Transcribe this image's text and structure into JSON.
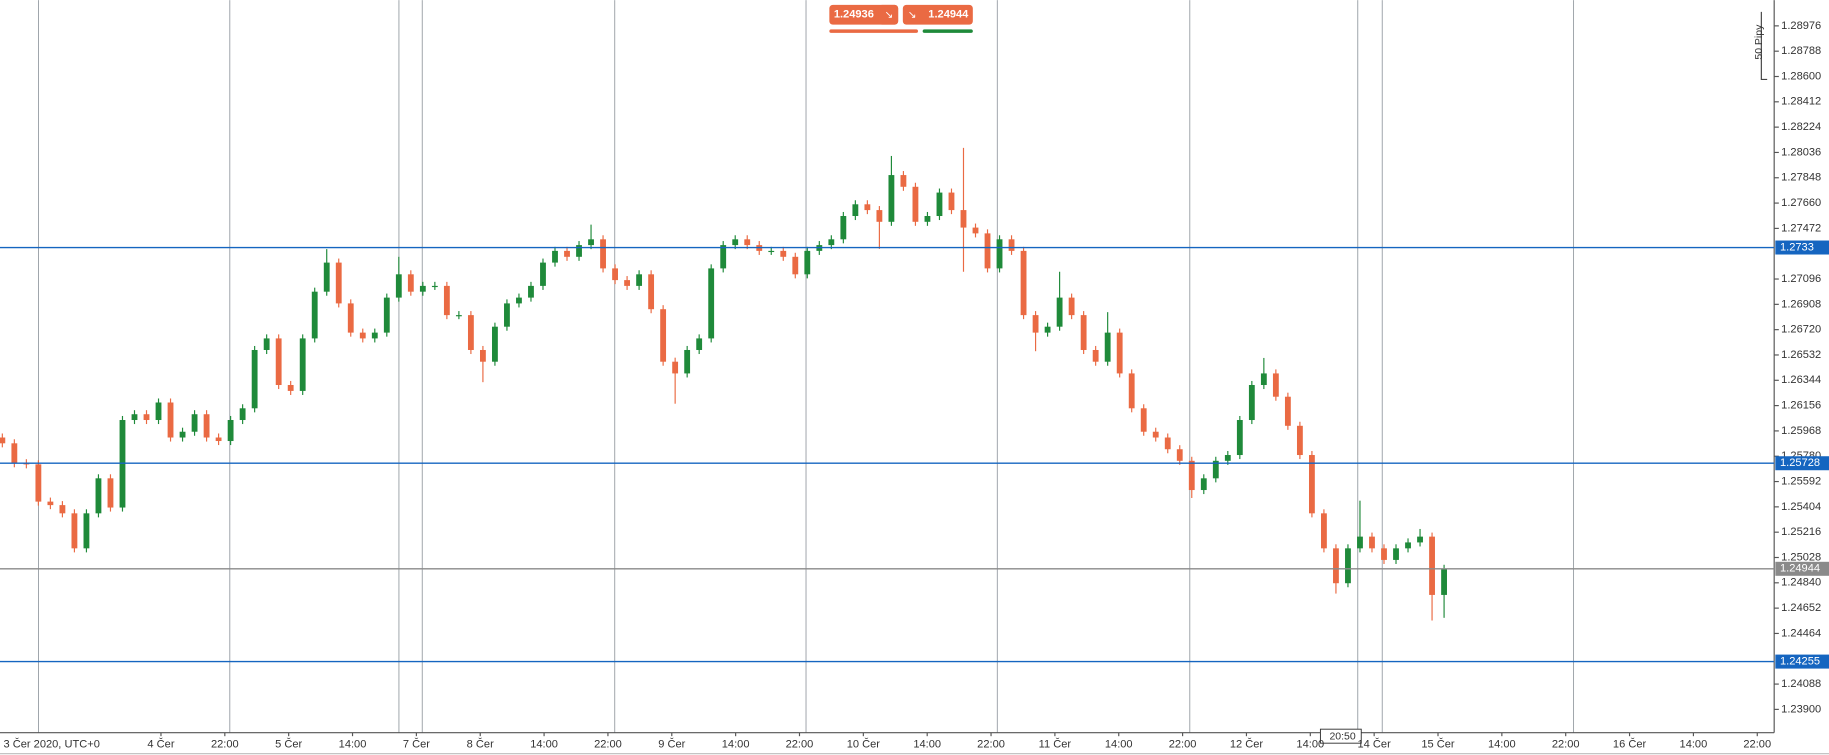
{
  "chart_data": {
    "type": "candlestick",
    "up_color": "#1f8a3a",
    "down_color": "#ea6a43",
    "ylim": [
      1.29167,
      1.23727
    ],
    "yticks": [
      1.28976,
      1.28788,
      {
        "value": 1.286,
        "label": "1.28600"
      },
      1.28412,
      1.28224,
      1.28036,
      1.27848,
      {
        "value": 1.2766,
        "label": "1.27660"
      },
      1.27472,
      1.27096,
      1.26908,
      {
        "value": 1.2672,
        "label": "1.26720"
      },
      1.26532,
      1.26344,
      1.26156,
      1.25968,
      {
        "value": 1.2578,
        "label": "1.25780"
      },
      1.25592,
      1.25404,
      1.25216,
      1.25028,
      {
        "value": 1.2484,
        "label": "1.24840"
      },
      1.24652,
      1.24464,
      1.24088,
      {
        "value": 1.239,
        "label": "1.23900"
      }
    ],
    "x_labels": [
      "3 Čer 2020, UTC+0",
      "4 Čer",
      "22:00",
      "5 Čer",
      "14:00",
      "7 Čer",
      "8 Čer",
      "14:00",
      "22:00",
      "9 Čer",
      "14:00",
      "22:00",
      "10 Čer",
      "14:00",
      "22:00",
      "11 Čer",
      "14:00",
      "22:00",
      "12 Čer",
      "14:00",
      "14 Čer",
      "15 Čer",
      "14:00",
      "22:00",
      "16 Čer",
      "14:00",
      "22:00"
    ],
    "open": [
      1.25919,
      1.25876,
      1.25728,
      1.2572,
      1.25443,
      1.25417,
      1.25356,
      1.25096,
      1.25356,
      1.25616,
      1.25399,
      1.26049,
      1.26092,
      1.26049,
      1.26179,
      1.25919,
      1.25962,
      1.26092,
      1.25919,
      1.25893,
      1.26049,
      1.26136,
      1.26569,
      1.26655,
      1.26309,
      1.26265,
      1.26655,
      1.27002,
      1.27218,
      1.26915,
      1.26698,
      1.26655,
      1.26698,
      1.26958,
      1.27131,
      1.27002,
      1.27045,
      1.27045,
      1.26828,
      1.26828,
      1.26569,
      1.26482,
      1.26742,
      1.26915,
      1.26958,
      1.27045,
      1.27218,
      1.27305,
      1.27261,
      1.27348,
      1.27391,
      1.27175,
      1.27088,
      1.27045,
      1.27131,
      1.26872,
      1.26482,
      1.26395,
      1.26569,
      1.26655,
      1.27175,
      1.27348,
      1.27391,
      1.27348,
      1.27305,
      1.27305,
      1.27261,
      1.27131,
      1.27305,
      1.27348,
      1.27391,
      1.27564,
      1.27651,
      1.27608,
      1.27521,
      1.27868,
      1.27781,
      1.27521,
      1.27564,
      1.27738,
      1.27608,
      1.27478,
      1.27435,
      1.27175,
      1.27391,
      1.27305,
      1.26828,
      1.26698,
      1.26742,
      1.26958,
      1.26828,
      1.26569,
      1.26482,
      1.26698,
      1.26395,
      1.26136,
      1.25962,
      1.25919,
      1.25832,
      1.25746,
      1.25529,
      1.25616,
      1.25746,
      1.25789,
      1.26049,
      1.26309,
      1.26395,
      1.26222,
      1.26006,
      1.25789,
      1.25356,
      1.25096,
      1.24837,
      1.25096,
      1.25183,
      1.25096,
      1.2501,
      1.25096,
      1.2514,
      1.25183,
      1.2475
    ],
    "high": [
      1.25949,
      1.25906,
      1.25758,
      1.2575,
      1.25473,
      1.25447,
      1.25386,
      1.25386,
      1.25646,
      1.25646,
      1.26079,
      1.26122,
      1.26122,
      1.26209,
      1.26209,
      1.25992,
      1.26122,
      1.26122,
      1.25949,
      1.26079,
      1.26166,
      1.26599,
      1.26685,
      1.26685,
      1.26339,
      1.26685,
      1.27032,
      1.27318,
      1.27248,
      1.26945,
      1.26728,
      1.26728,
      1.26988,
      1.27261,
      1.27161,
      1.27075,
      1.27075,
      1.27075,
      1.26858,
      1.26858,
      1.26599,
      1.26772,
      1.26945,
      1.26988,
      1.27075,
      1.27248,
      1.27335,
      1.27335,
      1.27378,
      1.275,
      1.27421,
      1.27205,
      1.27118,
      1.27161,
      1.27161,
      1.26902,
      1.26512,
      1.26599,
      1.26685,
      1.27205,
      1.27378,
      1.27421,
      1.27421,
      1.27378,
      1.27335,
      1.27335,
      1.27291,
      1.27335,
      1.27378,
      1.27421,
      1.27594,
      1.27681,
      1.27681,
      1.27638,
      1.2801,
      1.27898,
      1.27811,
      1.27594,
      1.27768,
      1.27768,
      1.2807,
      1.27508,
      1.27465,
      1.27421,
      1.27421,
      1.27335,
      1.26858,
      1.26772,
      1.2715,
      1.26988,
      1.26858,
      1.26599,
      1.2685,
      1.26728,
      1.26425,
      1.26166,
      1.25992,
      1.25949,
      1.25862,
      1.25776,
      1.25646,
      1.25776,
      1.25819,
      1.26079,
      1.26339,
      1.2651,
      1.26425,
      1.26252,
      1.26036,
      1.25819,
      1.25386,
      1.25126,
      1.25126,
      1.2545,
      1.25213,
      1.25126,
      1.25126,
      1.2517,
      1.2524,
      1.25213,
      1.24974
    ],
    "low": [
      1.25846,
      1.25698,
      1.2569,
      1.25413,
      1.25387,
      1.25326,
      1.25066,
      1.25066,
      1.25326,
      1.25369,
      1.25369,
      1.26019,
      1.26019,
      1.26019,
      1.25889,
      1.25889,
      1.25932,
      1.25889,
      1.25863,
      1.25863,
      1.26019,
      1.26106,
      1.26539,
      1.26279,
      1.26235,
      1.26235,
      1.26625,
      1.26972,
      1.26885,
      1.26668,
      1.26625,
      1.26625,
      1.26668,
      1.26928,
      1.26972,
      1.26972,
      1.27015,
      1.26798,
      1.26798,
      1.26539,
      1.2633,
      1.26452,
      1.26712,
      1.26885,
      1.26928,
      1.27015,
      1.27188,
      1.27231,
      1.27231,
      1.27318,
      1.27145,
      1.27058,
      1.27015,
      1.27015,
      1.26842,
      1.26452,
      1.2617,
      1.26365,
      1.26539,
      1.26625,
      1.27145,
      1.27318,
      1.27318,
      1.27275,
      1.27275,
      1.27231,
      1.27101,
      1.27101,
      1.27275,
      1.27318,
      1.27361,
      1.27534,
      1.27578,
      1.2732,
      1.27491,
      1.27751,
      1.27491,
      1.27491,
      1.27534,
      1.27578,
      1.2715,
      1.27405,
      1.27145,
      1.27145,
      1.27275,
      1.26798,
      1.2656,
      1.26668,
      1.26712,
      1.26798,
      1.26539,
      1.26452,
      1.26452,
      1.26365,
      1.26106,
      1.25932,
      1.25889,
      1.25802,
      1.25716,
      1.2547,
      1.25499,
      1.25586,
      1.25716,
      1.25759,
      1.26019,
      1.26279,
      1.26192,
      1.25976,
      1.25759,
      1.25326,
      1.25066,
      1.2476,
      1.24807,
      1.25066,
      1.25066,
      1.2498,
      1.2498,
      1.25066,
      1.2511,
      1.2456,
      1.2458
    ],
    "close": [
      1.25876,
      1.25728,
      1.2572,
      1.25443,
      1.25417,
      1.25356,
      1.25096,
      1.25356,
      1.25616,
      1.25399,
      1.26049,
      1.26092,
      1.26049,
      1.26179,
      1.25919,
      1.25962,
      1.26092,
      1.25919,
      1.25893,
      1.26049,
      1.26136,
      1.26569,
      1.26655,
      1.26309,
      1.26265,
      1.26655,
      1.27002,
      1.27218,
      1.26915,
      1.26698,
      1.26655,
      1.26698,
      1.26958,
      1.27131,
      1.27002,
      1.27045,
      1.27045,
      1.26828,
      1.26828,
      1.26569,
      1.26482,
      1.26742,
      1.26915,
      1.26958,
      1.27045,
      1.27218,
      1.27305,
      1.27261,
      1.27348,
      1.27391,
      1.27175,
      1.27088,
      1.27045,
      1.27131,
      1.26872,
      1.26482,
      1.26395,
      1.26569,
      1.26655,
      1.27175,
      1.27348,
      1.27391,
      1.27348,
      1.27305,
      1.27305,
      1.27261,
      1.27131,
      1.27305,
      1.27348,
      1.27391,
      1.27564,
      1.27651,
      1.27608,
      1.27521,
      1.27868,
      1.27781,
      1.27521,
      1.27564,
      1.27738,
      1.27608,
      1.27478,
      1.27435,
      1.27175,
      1.27391,
      1.27305,
      1.26828,
      1.26698,
      1.26742,
      1.26958,
      1.26828,
      1.26569,
      1.26482,
      1.26698,
      1.26395,
      1.26136,
      1.25962,
      1.25919,
      1.25832,
      1.25746,
      1.25529,
      1.25616,
      1.25746,
      1.25789,
      1.26049,
      1.26309,
      1.26395,
      1.26222,
      1.26006,
      1.25789,
      1.25356,
      1.25096,
      1.24837,
      1.25096,
      1.25183,
      1.25096,
      1.2501,
      1.25096,
      1.2514,
      1.25183,
      1.2475,
      1.24944
    ],
    "levels": [
      {
        "value": 1.2733,
        "color": "#1565c0"
      },
      {
        "value": 1.25728,
        "color": "#1565c0"
      },
      {
        "value": 1.24255,
        "color": "#1565c0"
      },
      {
        "value": 1.24944,
        "color": "#8a8a8a"
      }
    ],
    "sell_price": 1.24936,
    "buy_price": 1.24944,
    "sell_color": "#ea6a43",
    "buy_color": "#1f8a3a",
    "pip_label": "50 Pipy",
    "cursor_time": "20:50"
  }
}
